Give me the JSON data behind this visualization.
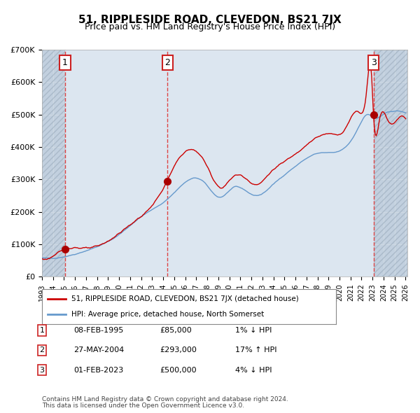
{
  "title1": "51, RIPPLESIDE ROAD, CLEVEDON, BS21 7JX",
  "title2": "Price paid vs. HM Land Registry's House Price Index (HPI)",
  "transactions": [
    {
      "date": "1995-02-08",
      "price": 85000,
      "label": "1"
    },
    {
      "date": "2004-05-27",
      "price": 293000,
      "label": "2"
    },
    {
      "date": "2023-02-01",
      "price": 500000,
      "label": "3"
    }
  ],
  "table_rows": [
    {
      "num": "1",
      "date": "08-FEB-1995",
      "price": "£85,000",
      "hpi": "1% ↓ HPI"
    },
    {
      "num": "2",
      "date": "27-MAY-2004",
      "price": "£293,000",
      "hpi": "17% ↑ HPI"
    },
    {
      "num": "3",
      "date": "01-FEB-2023",
      "price": "£500,000",
      "hpi": "4% ↓ HPI"
    }
  ],
  "legend1": "51, RIPPLESIDE ROAD, CLEVEDON, BS21 7JX (detached house)",
  "legend2": "HPI: Average price, detached house, North Somerset",
  "footer1": "Contains HM Land Registry data © Crown copyright and database right 2024.",
  "footer2": "This data is licensed under the Open Government Licence v3.0.",
  "ylim": [
    0,
    700000
  ],
  "yticks": [
    0,
    100000,
    200000,
    300000,
    400000,
    500000,
    600000,
    700000
  ],
  "ytick_labels": [
    "£0",
    "£100K",
    "£200K",
    "£300K",
    "£400K",
    "£500K",
    "£600K",
    "£700K"
  ],
  "hpi_color": "#6699cc",
  "price_color": "#cc0000",
  "bg_plot": "#dce6f0",
  "bg_hatch": "#c8d4e3",
  "grid_color": "#ffffff",
  "sale_marker_color": "#aa0000",
  "dashed_line_color": "#dd4444",
  "box_color": "#cc2222"
}
